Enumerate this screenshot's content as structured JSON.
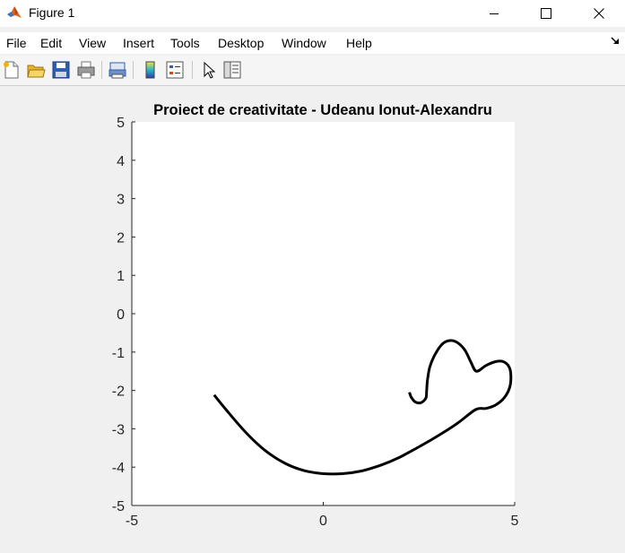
{
  "window": {
    "title": "Figure 1",
    "icon": "matlab-logo-icon",
    "controls": [
      "minimize-icon",
      "maximize-icon",
      "close-icon"
    ]
  },
  "menu": {
    "items": [
      "File",
      "Edit",
      "View",
      "Insert",
      "Tools",
      "Desktop",
      "Window",
      "Help"
    ]
  },
  "toolbar": {
    "icons": [
      "new-figure-icon",
      "open-file-icon",
      "save-icon",
      "print-icon",
      "print-preview-icon",
      "colorbar-icon",
      "legend-icon",
      "select-arrow-icon",
      "property-editor-icon"
    ]
  },
  "colors": {
    "line": "#000000",
    "axes_bg": "#ffffff",
    "figure_bg": "#f0f0f0"
  },
  "chart_data": {
    "type": "line",
    "title": "Proiect de creativitate - Udeanu Ionut-Alexandru",
    "xlabel": "",
    "ylabel": "",
    "xlim": [
      -5,
      5
    ],
    "ylim": [
      -5,
      5
    ],
    "xticks": [
      -5,
      0,
      5
    ],
    "yticks": [
      5,
      4,
      3,
      2,
      1,
      0,
      -1,
      -2,
      -3,
      -4,
      -5
    ],
    "grid": false,
    "series": [
      {
        "color": "#000000",
        "x": [
          -2.85,
          -2.5,
          -2.0,
          -1.5,
          -1.0,
          -0.5,
          0.0,
          0.5,
          1.0,
          1.5,
          2.0,
          2.5,
          3.0,
          3.5,
          3.98,
          4.25,
          4.5,
          4.72,
          4.87,
          4.9,
          4.85,
          4.7,
          4.5,
          4.25,
          4.0,
          3.85,
          3.7,
          3.5,
          3.3,
          3.1,
          2.9,
          2.78,
          2.72,
          2.7,
          2.68,
          2.55,
          2.4,
          2.3,
          2.25
        ],
        "y": [
          -2.12,
          -2.55,
          -3.12,
          -3.58,
          -3.9,
          -4.09,
          -4.17,
          -4.17,
          -4.1,
          -3.95,
          -3.74,
          -3.47,
          -3.18,
          -2.86,
          -2.5,
          -2.47,
          -2.38,
          -2.2,
          -1.92,
          -1.6,
          -1.38,
          -1.25,
          -1.25,
          -1.35,
          -1.5,
          -1.25,
          -0.95,
          -0.75,
          -0.7,
          -0.8,
          -1.1,
          -1.4,
          -1.75,
          -2.0,
          -2.2,
          -2.32,
          -2.3,
          -2.18,
          -2.05
        ]
      }
    ]
  }
}
